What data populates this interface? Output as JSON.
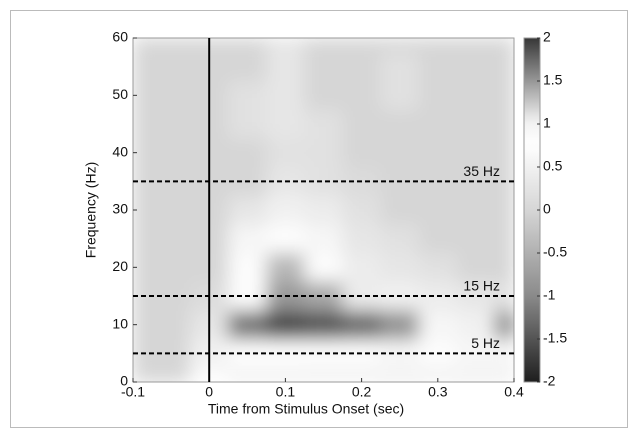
{
  "chart_data": {
    "type": "heatmap",
    "xlabel": "Time from Stimulus Onset (sec)",
    "ylabel": "Frequency (Hz)",
    "x": [
      -0.1,
      -0.05,
      0,
      0.05,
      0.1,
      0.15,
      0.2,
      0.25,
      0.3,
      0.35,
      0.4
    ],
    "y": [
      0,
      5,
      10,
      15,
      20,
      25,
      30,
      35,
      40,
      45,
      50,
      55,
      60
    ],
    "z": [
      [
        0,
        0,
        0.8,
        1,
        1,
        1,
        1,
        1,
        1,
        1,
        1
      ],
      [
        0,
        0,
        0.5,
        0.8,
        0.8,
        0.7,
        0.7,
        0.6,
        0.7,
        0.6,
        0.6
      ],
      [
        0,
        0,
        0.3,
        -1.2,
        -1.6,
        -1.5,
        -1.3,
        -0.9,
        0.6,
        0.5,
        -1
      ],
      [
        0,
        0,
        0.1,
        0.8,
        -0.8,
        -0.6,
        0.4,
        0.5,
        0.4,
        0.3,
        0.2
      ],
      [
        0,
        0,
        0,
        0.7,
        -0.4,
        0.7,
        0.4,
        0.3,
        0.2,
        0,
        0
      ],
      [
        0,
        0,
        0,
        0.6,
        0.8,
        0.6,
        0.3,
        0.2,
        0,
        0,
        0
      ],
      [
        0,
        0,
        0,
        0.3,
        0.5,
        0.4,
        0.2,
        0,
        0,
        0,
        0
      ],
      [
        0,
        0,
        0,
        0,
        0.3,
        0.2,
        0.1,
        0,
        0,
        0,
        0
      ],
      [
        0,
        0,
        0,
        0,
        0.2,
        0.2,
        0,
        0,
        0,
        0,
        0
      ],
      [
        0,
        0,
        0,
        0.2,
        0.3,
        0.2,
        0,
        0,
        0,
        0,
        0
      ],
      [
        0,
        0,
        0,
        0.2,
        0.3,
        0,
        0,
        0.2,
        0,
        0,
        0
      ],
      [
        0,
        0,
        0,
        0,
        0.3,
        0,
        0,
        0.2,
        0,
        0,
        0
      ],
      [
        0,
        0,
        0,
        0,
        0.3,
        0,
        0,
        0,
        0,
        0,
        0
      ]
    ],
    "xlim": [
      -0.1,
      0.4
    ],
    "xticks": [
      -0.1,
      0,
      0.1,
      0.2,
      0.3,
      0.4
    ],
    "ylim": [
      0,
      60
    ],
    "yticks": [
      0,
      10,
      20,
      30,
      40,
      50,
      60
    ],
    "clim": [
      -2,
      2
    ],
    "cticks": [
      -2,
      -1.5,
      -1,
      -0.5,
      0,
      0.5,
      1,
      1.5,
      2
    ],
    "vline": 0,
    "hlines": [
      {
        "value": 35,
        "label": "35 Hz"
      },
      {
        "value": 15,
        "label": "15 Hz"
      },
      {
        "value": 5,
        "label": "5 Hz"
      }
    ]
  }
}
